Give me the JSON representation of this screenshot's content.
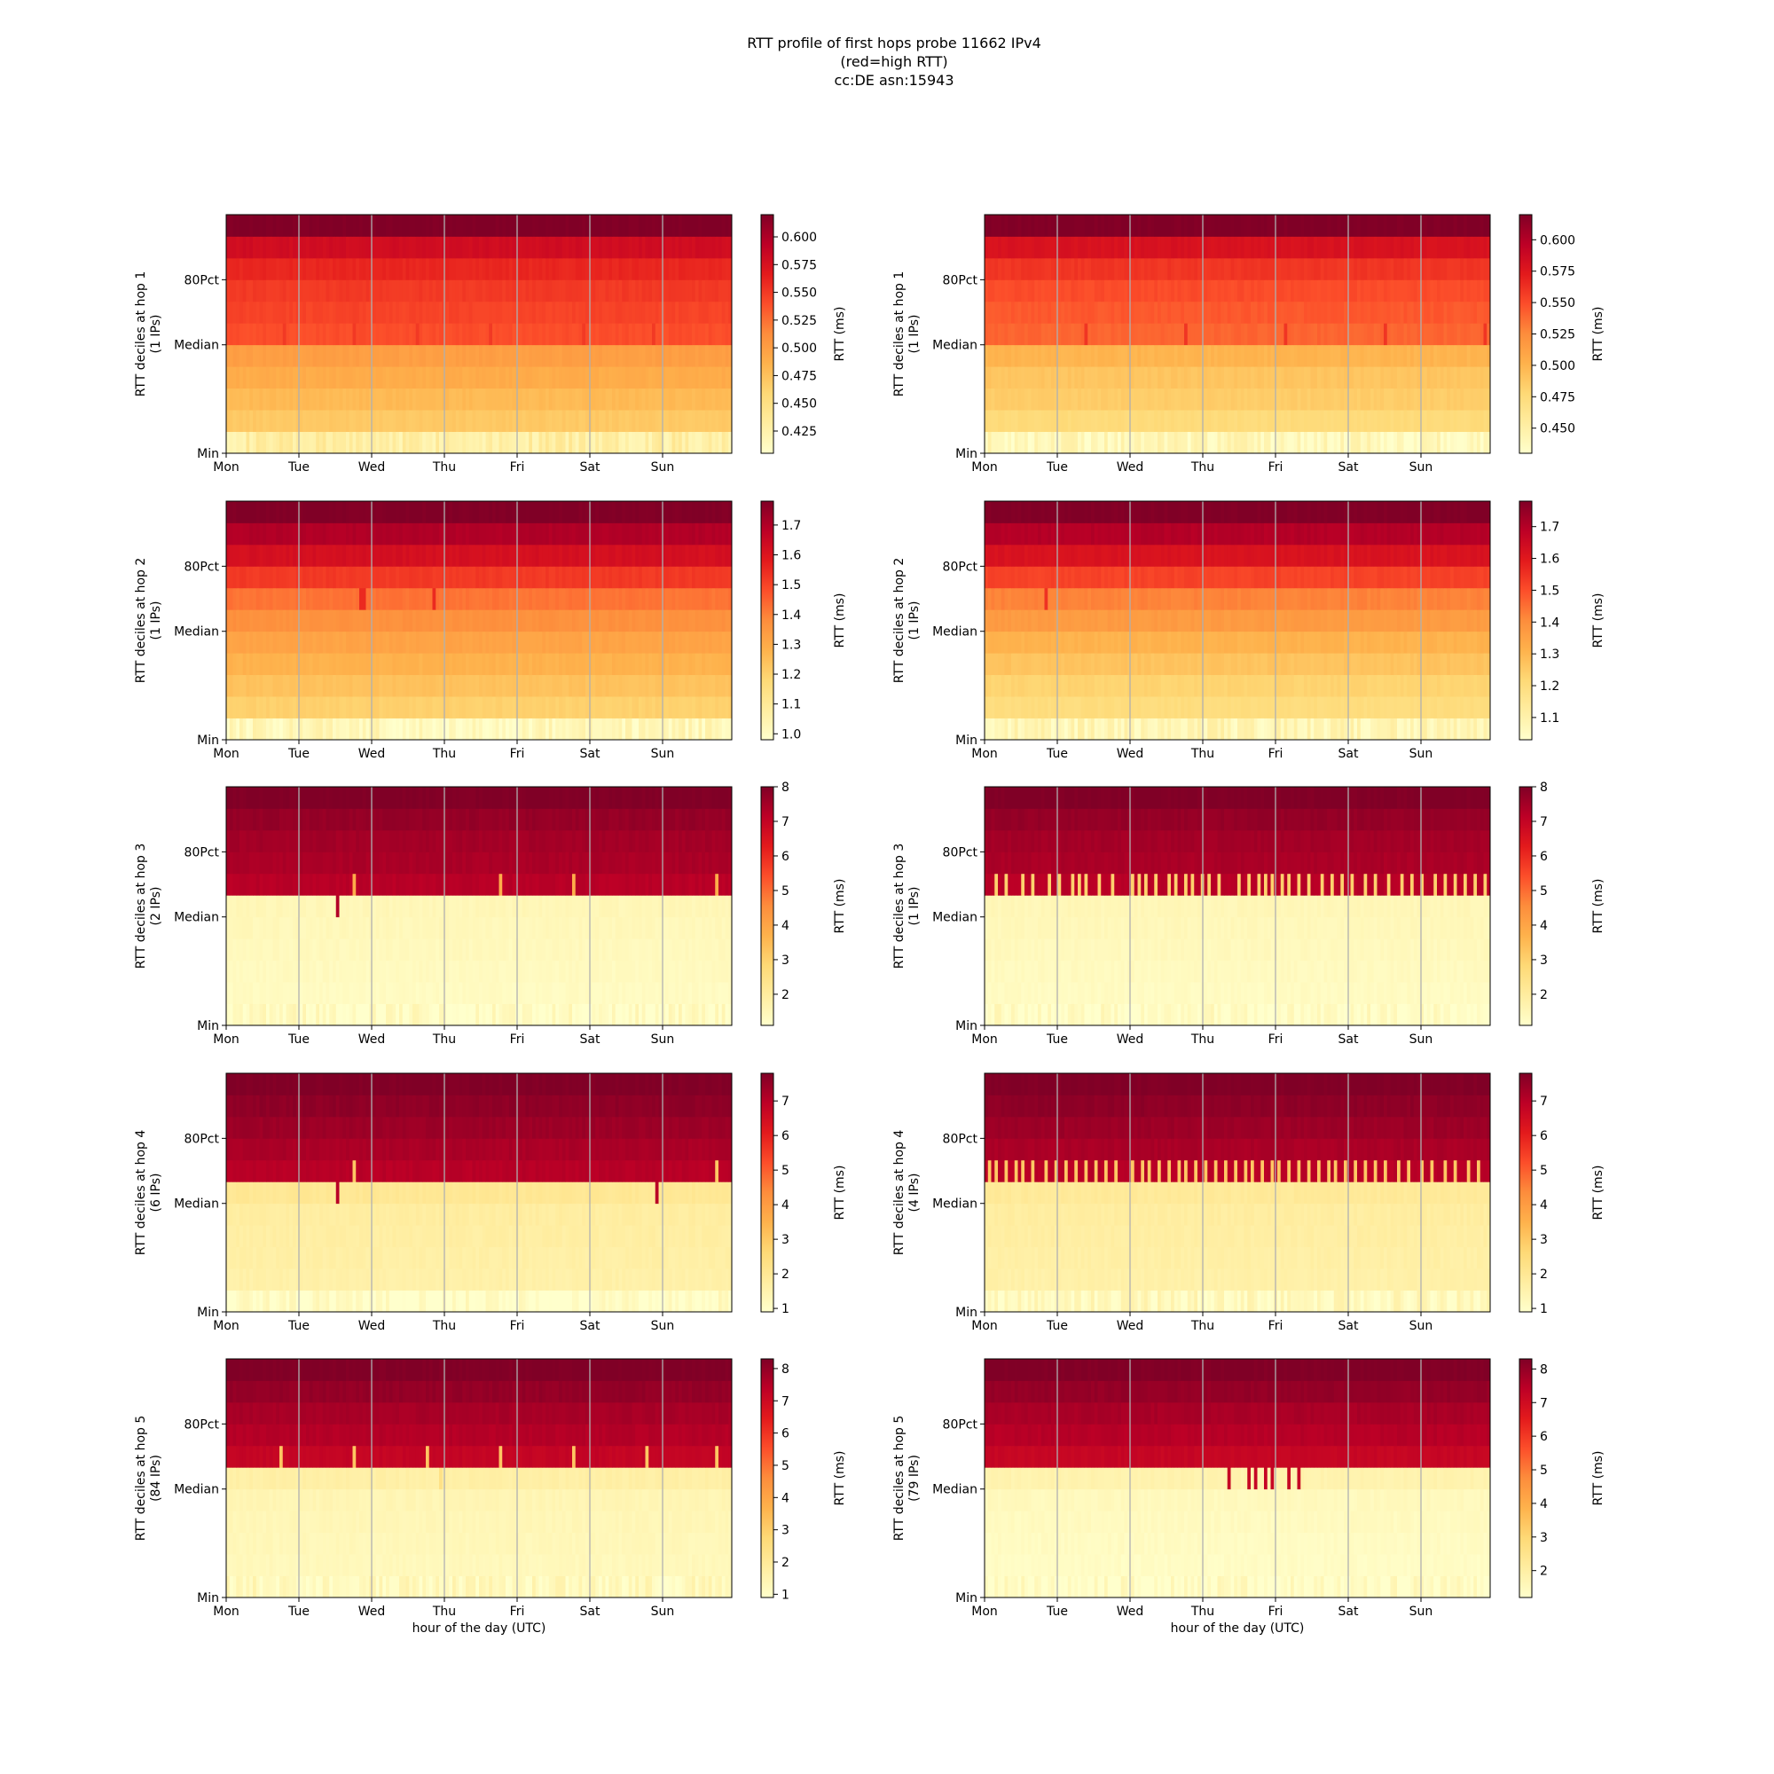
{
  "title_lines": [
    "RTT profile of first hops probe 11662 IPv4",
    "(red=high RTT)",
    "cc:DE asn:15943"
  ],
  "chart_data": [
    {
      "type": "heatmap",
      "hop": 1,
      "ylabel_line1": "RTT deciles at hop 1",
      "ylabel_line2": "(1 IPs)",
      "xlabel": "",
      "x_categories": [
        "Mon",
        "Tue",
        "Wed",
        "Thu",
        "Fri",
        "Sat",
        "Sun"
      ],
      "y_ticks": [
        "Min",
        "Median",
        "80Pct"
      ],
      "cbar_label": "RTT (ms)",
      "cbar_range": [
        0.405,
        0.62
      ],
      "cbar_ticks": [
        "0.425",
        "0.450",
        "0.475",
        "0.500",
        "0.525",
        "0.550",
        "0.575",
        "0.600"
      ],
      "rows": 11,
      "decile_profile": [
        0.43,
        0.47,
        0.48,
        0.49,
        0.5,
        0.54,
        0.545,
        0.55,
        0.56,
        0.58,
        0.62
      ],
      "spike_row": 5,
      "spike_value": 0.55,
      "spike_columns": [
        17,
        38,
        57,
        79,
        107,
        128,
        162
      ]
    },
    {
      "type": "heatmap",
      "hop": 1,
      "ylabel_line1": "RTT deciles at hop 1",
      "ylabel_line2": "(1 IPs)",
      "xlabel": "",
      "x_categories": [
        "Mon",
        "Tue",
        "Wed",
        "Thu",
        "Fri",
        "Sat",
        "Sun"
      ],
      "y_ticks": [
        "Min",
        "Median",
        "80Pct"
      ],
      "cbar_label": "RTT (ms)",
      "cbar_range": [
        0.43,
        0.62
      ],
      "cbar_ticks": [
        "0.450",
        "0.475",
        "0.500",
        "0.525",
        "0.550",
        "0.575",
        "0.600"
      ],
      "rows": 11,
      "decile_profile": [
        0.44,
        0.475,
        0.485,
        0.49,
        0.5,
        0.54,
        0.545,
        0.55,
        0.56,
        0.58,
        0.62
      ],
      "spike_row": 5,
      "spike_value": 0.56,
      "spike_columns": [
        30,
        60,
        90,
        120,
        150
      ]
    },
    {
      "type": "heatmap",
      "hop": 2,
      "ylabel_line1": "RTT deciles at hop 2",
      "ylabel_line2": "(1 IPs)",
      "xlabel": "",
      "x_categories": [
        "Mon",
        "Tue",
        "Wed",
        "Thu",
        "Fri",
        "Sat",
        "Sun"
      ],
      "y_ticks": [
        "Min",
        "Median",
        "80Pct"
      ],
      "cbar_label": "RTT (ms)",
      "cbar_range": [
        0.98,
        1.78
      ],
      "cbar_ticks": [
        "1.0",
        "1.1",
        "1.2",
        "1.3",
        "1.4",
        "1.5",
        "1.6",
        "1.7"
      ],
      "rows": 11,
      "decile_profile": [
        1.02,
        1.2,
        1.24,
        1.28,
        1.32,
        1.37,
        1.42,
        1.52,
        1.62,
        1.7,
        1.78
      ],
      "spike_row": 6,
      "spike_value": 1.55,
      "spike_columns": [
        40,
        41,
        62
      ]
    },
    {
      "type": "heatmap",
      "hop": 2,
      "ylabel_line1": "RTT deciles at hop 2",
      "ylabel_line2": "(1 IPs)",
      "xlabel": "",
      "x_categories": [
        "Mon",
        "Tue",
        "Wed",
        "Thu",
        "Fri",
        "Sat",
        "Sun"
      ],
      "y_ticks": [
        "Min",
        "Median",
        "80Pct"
      ],
      "cbar_label": "RTT (ms)",
      "cbar_range": [
        1.03,
        1.78
      ],
      "cbar_ticks": [
        "1.1",
        "1.2",
        "1.3",
        "1.4",
        "1.5",
        "1.6",
        "1.7"
      ],
      "rows": 11,
      "decile_profile": [
        1.08,
        1.2,
        1.23,
        1.27,
        1.31,
        1.37,
        1.42,
        1.52,
        1.62,
        1.7,
        1.78
      ],
      "spike_row": 6,
      "spike_value": 1.55,
      "spike_columns": [
        18
      ]
    },
    {
      "type": "heatmap",
      "hop": 3,
      "ylabel_line1": "RTT deciles at hop 3",
      "ylabel_line2": "(2 IPs)",
      "xlabel": "",
      "x_categories": [
        "Mon",
        "Tue",
        "Wed",
        "Thu",
        "Fri",
        "Sat",
        "Sun"
      ],
      "y_ticks": [
        "Min",
        "Median",
        "80Pct"
      ],
      "cbar_label": "RTT (ms)",
      "cbar_range": [
        1.1,
        8.0
      ],
      "cbar_ticks": [
        "2",
        "3",
        "4",
        "5",
        "6",
        "7",
        "8"
      ],
      "rows": 11,
      "decile_profile": [
        1.25,
        1.3,
        1.35,
        1.4,
        1.45,
        1.5,
        7.2,
        7.4,
        7.5,
        7.7,
        8.0
      ],
      "spike_row": 6,
      "spike_value": 3.8,
      "spike_columns": [
        38,
        82,
        104,
        147
      ],
      "dip_row": 5,
      "dip_value": 7.3,
      "dip_columns": [
        33
      ]
    },
    {
      "type": "heatmap",
      "hop": 3,
      "ylabel_line1": "RTT deciles at hop 3",
      "ylabel_line2": "(1 IPs)",
      "xlabel": "",
      "x_categories": [
        "Mon",
        "Tue",
        "Wed",
        "Thu",
        "Fri",
        "Sat",
        "Sun"
      ],
      "y_ticks": [
        "Min",
        "Median",
        "80Pct"
      ],
      "cbar_label": "RTT (ms)",
      "cbar_range": [
        1.1,
        8.0
      ],
      "cbar_ticks": [
        "2",
        "3",
        "4",
        "5",
        "6",
        "7",
        "8"
      ],
      "rows": 11,
      "decile_profile": [
        1.25,
        1.3,
        1.35,
        1.4,
        1.45,
        1.5,
        7.2,
        7.4,
        7.5,
        7.7,
        8.0
      ],
      "spike_row": 6,
      "spike_value": 3.0,
      "spike_columns": [
        3,
        6,
        11,
        14,
        19,
        22,
        26,
        28,
        30,
        34,
        38,
        44,
        46,
        48,
        51,
        55,
        57,
        60,
        62,
        65,
        67,
        70,
        76,
        79,
        82,
        84,
        86,
        89,
        91,
        94,
        97,
        101,
        104,
        107,
        110,
        114,
        117,
        121,
        125,
        128,
        131,
        135,
        138,
        141,
        144,
        147,
        150
      ],
      "dip_row": 5,
      "dip_value": 7.3,
      "dip_columns": []
    },
    {
      "type": "heatmap",
      "hop": 4,
      "ylabel_line1": "RTT deciles at hop 4",
      "ylabel_line2": "(6 IPs)",
      "xlabel": "",
      "x_categories": [
        "Mon",
        "Tue",
        "Wed",
        "Thu",
        "Fri",
        "Sat",
        "Sun"
      ],
      "y_ticks": [
        "Min",
        "Median",
        "80Pct"
      ],
      "cbar_label": "RTT (ms)",
      "cbar_range": [
        0.9,
        7.8
      ],
      "cbar_ticks": [
        "1",
        "2",
        "3",
        "4",
        "5",
        "6",
        "7"
      ],
      "rows": 11,
      "decile_profile": [
        1.0,
        1.6,
        1.65,
        1.7,
        1.75,
        2.0,
        7.0,
        7.2,
        7.4,
        7.6,
        7.8
      ],
      "spike_row": 6,
      "spike_value": 3.0,
      "spike_columns": [
        38,
        147
      ],
      "dip_row": 5,
      "dip_value": 7.0,
      "dip_columns": [
        33,
        129
      ]
    },
    {
      "type": "heatmap",
      "hop": 4,
      "ylabel_line1": "RTT deciles at hop 4",
      "ylabel_line2": "(4 IPs)",
      "xlabel": "",
      "x_categories": [
        "Mon",
        "Tue",
        "Wed",
        "Thu",
        "Fri",
        "Sat",
        "Sun"
      ],
      "y_ticks": [
        "Min",
        "Median",
        "80Pct"
      ],
      "cbar_label": "RTT (ms)",
      "cbar_range": [
        0.9,
        7.8
      ],
      "cbar_ticks": [
        "1",
        "2",
        "3",
        "4",
        "5",
        "6",
        "7"
      ],
      "rows": 11,
      "decile_profile": [
        1.2,
        1.6,
        1.65,
        1.7,
        1.75,
        1.9,
        7.0,
        7.2,
        7.4,
        7.6,
        7.8
      ],
      "spike_row": 6,
      "spike_value": 3.0,
      "spike_columns": [
        1,
        3,
        6,
        9,
        11,
        14,
        18,
        21,
        24,
        27,
        30,
        33,
        36,
        39,
        44,
        47,
        49,
        52,
        55,
        58,
        60,
        63,
        66,
        69,
        72,
        75,
        78,
        80,
        83,
        86,
        88,
        91,
        94,
        97,
        100,
        103,
        105,
        108,
        111,
        114,
        117,
        120,
        124,
        127,
        131,
        134,
        138,
        141,
        145,
        148
      ],
      "dip_row": 5,
      "dip_value": 7.0,
      "dip_columns": []
    },
    {
      "type": "heatmap",
      "hop": 5,
      "ylabel_line1": "RTT deciles at hop 5",
      "ylabel_line2": "(84 IPs)",
      "xlabel": "hour of the day (UTC)",
      "x_categories": [
        "Mon",
        "Tue",
        "Wed",
        "Thu",
        "Fri",
        "Sat",
        "Sun"
      ],
      "y_ticks": [
        "Min",
        "Median",
        "80Pct"
      ],
      "cbar_label": "RTT (ms)",
      "cbar_range": [
        0.9,
        8.3
      ],
      "cbar_ticks": [
        "1",
        "2",
        "3",
        "4",
        "5",
        "6",
        "7",
        "8"
      ],
      "rows": 11,
      "decile_profile": [
        1.2,
        1.25,
        1.3,
        1.35,
        1.4,
        1.7,
        7.2,
        7.5,
        7.7,
        8.0,
        8.3
      ],
      "spike_row": 6,
      "spike_value": 3.2,
      "spike_columns": [
        16,
        38,
        60,
        82,
        104,
        126,
        147
      ],
      "dip_row": 5,
      "dip_value": 2.4,
      "dip_columns": [
        64
      ]
    },
    {
      "type": "heatmap",
      "hop": 5,
      "ylabel_line1": "RTT deciles at hop 5",
      "ylabel_line2": "(79 IPs)",
      "xlabel": "hour of the day (UTC)",
      "x_categories": [
        "Mon",
        "Tue",
        "Wed",
        "Thu",
        "Fri",
        "Sat",
        "Sun"
      ],
      "y_ticks": [
        "Min",
        "Median",
        "80Pct"
      ],
      "cbar_label": "RTT (ms)",
      "cbar_range": [
        1.2,
        8.3
      ],
      "cbar_ticks": [
        "2",
        "3",
        "4",
        "5",
        "6",
        "7",
        "8"
      ],
      "rows": 11,
      "decile_profile": [
        1.3,
        1.35,
        1.4,
        1.45,
        1.5,
        1.8,
        7.2,
        7.5,
        7.7,
        8.0,
        8.3
      ],
      "spike_row": 5,
      "spike_value": 7.2,
      "spike_columns": [
        73,
        79,
        81,
        84,
        86,
        91,
        94
      ],
      "dip_row": 5,
      "dip_value": 1.8,
      "dip_columns": []
    }
  ]
}
